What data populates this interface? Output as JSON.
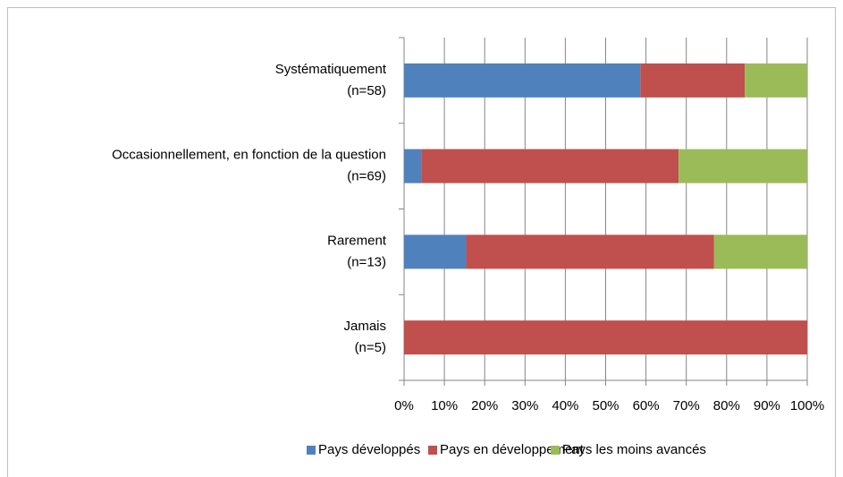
{
  "chart_data": {
    "type": "stacked_bar_horizontal",
    "categories": [
      [
        "Systématiquement",
        "(n=58)"
      ],
      [
        "Occasionnellement, en fonction de la question",
        "(n=69)"
      ],
      [
        "Rarement",
        "(n=13)"
      ],
      [
        "Jamais",
        "(n=5)"
      ]
    ],
    "series": [
      {
        "name": "Pays développés",
        "color": "#4f81bd",
        "values": [
          58.6,
          4.3,
          15.4,
          0
        ]
      },
      {
        "name": "Pays en développement",
        "color": "#c0504d",
        "values": [
          25.9,
          63.8,
          61.5,
          100
        ]
      },
      {
        "name": "Pays les moins avancés",
        "color": "#9bbb59",
        "values": [
          15.5,
          31.9,
          23.1,
          0
        ]
      }
    ],
    "xlim": [
      0,
      100
    ],
    "xticks": [
      {
        "value": 0,
        "label": "0%"
      },
      {
        "value": 10,
        "label": "10%"
      },
      {
        "value": 20,
        "label": "20%"
      },
      {
        "value": 30,
        "label": "30%"
      },
      {
        "value": 40,
        "label": "40%"
      },
      {
        "value": 50,
        "label": "50%"
      },
      {
        "value": 60,
        "label": "60%"
      },
      {
        "value": 70,
        "label": "70%"
      },
      {
        "value": 80,
        "label": "80%"
      },
      {
        "value": 90,
        "label": "90%"
      },
      {
        "value": 100,
        "label": "100%"
      }
    ],
    "grid": true,
    "legend": "bottom"
  }
}
